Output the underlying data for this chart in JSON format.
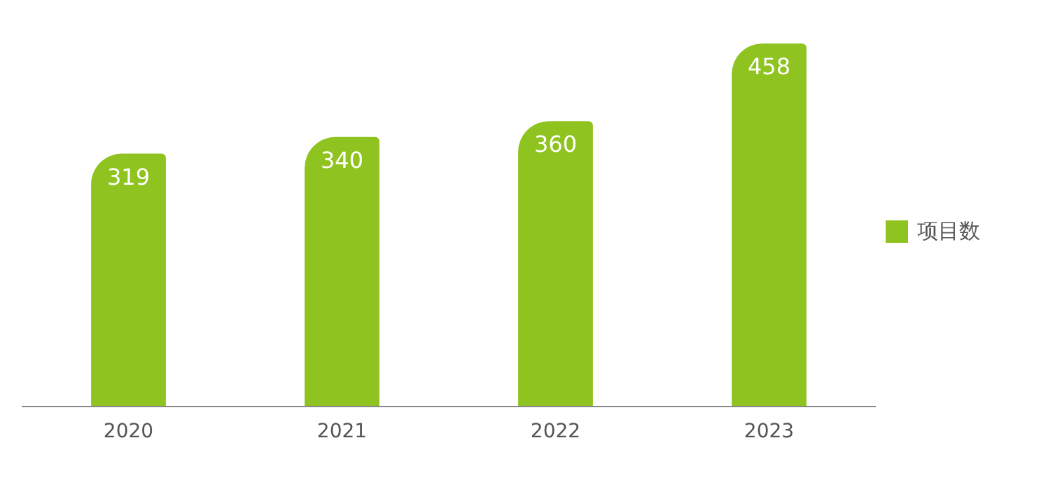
{
  "chart_data": {
    "type": "bar",
    "categories": [
      "2020",
      "2021",
      "2022",
      "2023"
    ],
    "series": [
      {
        "name": "项目数",
        "color": "#8fc31f",
        "values": [
          319,
          340,
          360,
          458
        ]
      }
    ],
    "data_labels": true,
    "legend": "right",
    "grid": false
  }
}
